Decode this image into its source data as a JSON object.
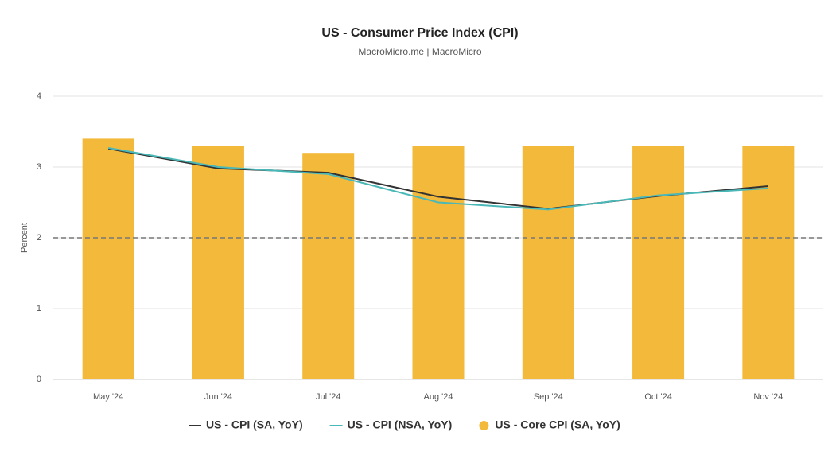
{
  "chart_data": {
    "type": "bar_line",
    "title": "US - Consumer Price Index (CPI)",
    "subtitle": "MacroMicro.me | MacroMicro",
    "y_label": "Percent",
    "categories": [
      "May '24",
      "Jun '24",
      "Jul '24",
      "Aug '24",
      "Sep '24",
      "Oct '24",
      "Nov '24"
    ],
    "series": [
      {
        "name": "US - CPI (SA, YoY)",
        "kind": "line",
        "color": "#333333",
        "values": [
          3.26,
          2.98,
          2.92,
          2.58,
          2.41,
          2.59,
          2.73
        ]
      },
      {
        "name": "US - CPI (NSA, YoY)",
        "kind": "line",
        "color": "#4bb8b8",
        "values": [
          3.27,
          3.0,
          2.9,
          2.5,
          2.4,
          2.6,
          2.7
        ]
      },
      {
        "name": "US - Core CPI (SA, YoY)",
        "kind": "bar",
        "color": "#f2b93b",
        "values": [
          3.4,
          3.3,
          3.2,
          3.3,
          3.3,
          3.3,
          3.3
        ]
      }
    ],
    "ylim": [
      0,
      4
    ],
    "yticks": [
      0,
      1,
      2,
      3,
      4
    ],
    "grid": true,
    "reference_line": 2
  }
}
